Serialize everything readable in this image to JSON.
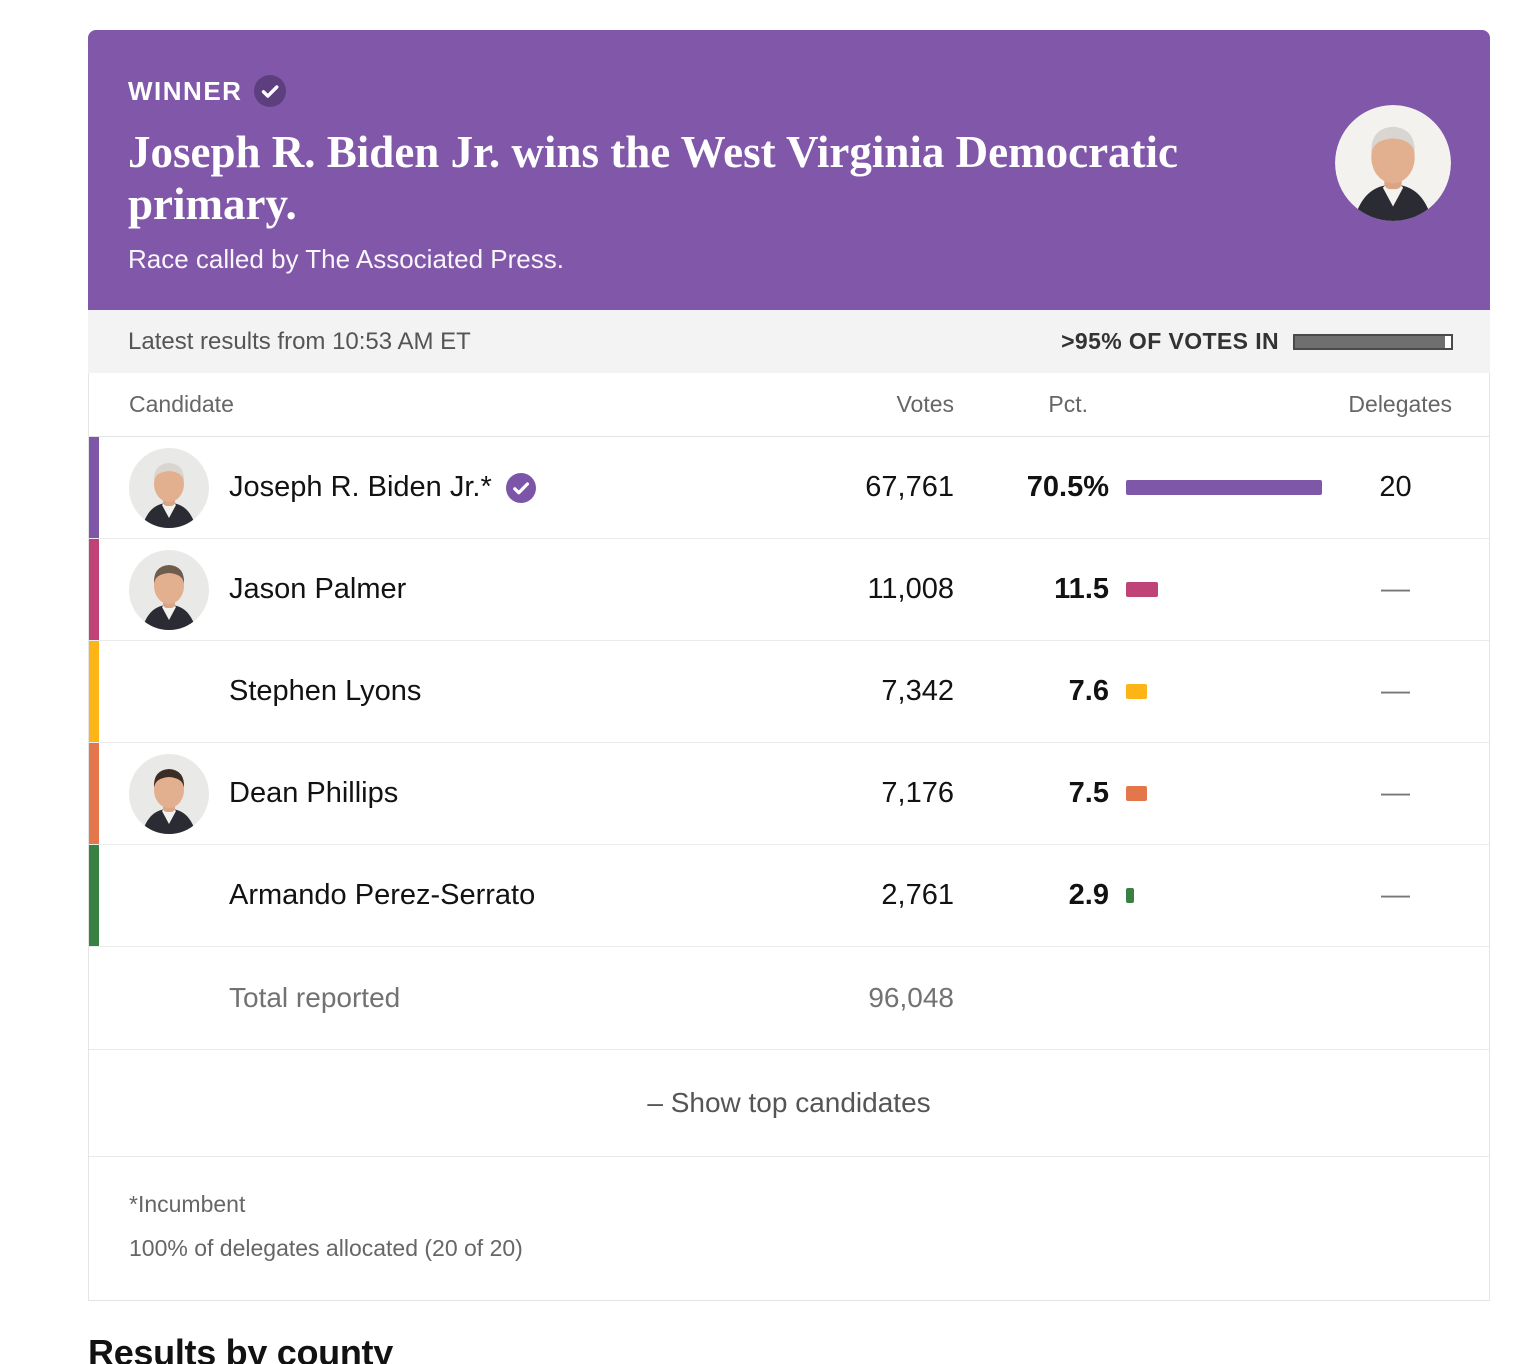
{
  "banner": {
    "badge_label": "WINNER",
    "title": "Joseph R. Biden Jr. wins the West Virginia Democratic primary.",
    "subtitle": "Race called by The Associated Press."
  },
  "status": {
    "updated": "Latest results from 10:53 AM ET",
    "votes_in_label": ">95% OF VOTES IN",
    "progress_fill_pct": 96
  },
  "table": {
    "headers": {
      "candidate": "Candidate",
      "votes": "Votes",
      "pct": "Pct.",
      "delegates": "Delegates"
    },
    "rows": [
      {
        "name": "Joseph R. Biden Jr.*",
        "winner": true,
        "has_avatar": true,
        "color": "#7e57a9",
        "votes": "67,761",
        "pct": "70.5%",
        "pct_value": 70.5,
        "delegates": "20"
      },
      {
        "name": "Jason Palmer",
        "winner": false,
        "has_avatar": true,
        "color": "#bf4377",
        "votes": "11,008",
        "pct": "11.5",
        "pct_value": 11.5,
        "delegates": "—"
      },
      {
        "name": "Stephen Lyons",
        "winner": false,
        "has_avatar": false,
        "color": "#fcb417",
        "votes": "7,342",
        "pct": "7.6",
        "pct_value": 7.6,
        "delegates": "—"
      },
      {
        "name": "Dean Phillips",
        "winner": false,
        "has_avatar": true,
        "color": "#e4764b",
        "votes": "7,176",
        "pct": "7.5",
        "pct_value": 7.5,
        "delegates": "—"
      },
      {
        "name": "Armando Perez-Serrato",
        "winner": false,
        "has_avatar": false,
        "color": "#398142",
        "votes": "2,761",
        "pct": "2.9",
        "pct_value": 2.9,
        "delegates": "—"
      }
    ],
    "total": {
      "label": "Total reported",
      "votes": "96,048"
    }
  },
  "show_toggle": "– Show top candidates",
  "footnotes": [
    "*Incumbent",
    "100% of delegates allocated (20 of 20)"
  ],
  "section_heading": "Results by county",
  "colors": {
    "banner_purple": "#8157a9",
    "winner_badge_dark": "#5d3f80",
    "table_check_purple": "#7d55a8",
    "progress_border": "#4a4a4a",
    "progress_fill": "#6f6f6f"
  }
}
